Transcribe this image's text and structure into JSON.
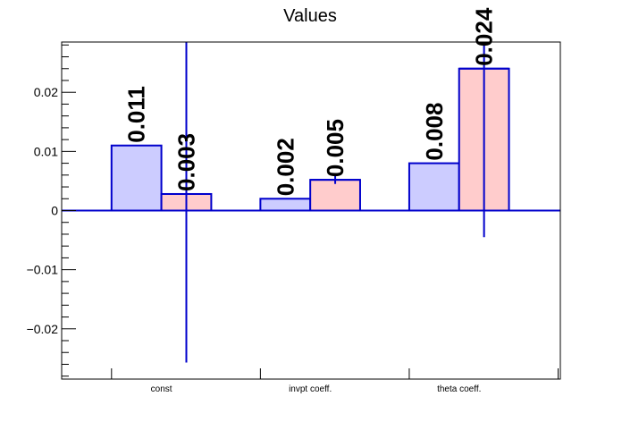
{
  "chart_data": {
    "type": "bar",
    "title": "Values",
    "xlabel": "",
    "ylabel": "",
    "categories": [
      "const",
      "invpt coeff.",
      "theta coeff."
    ],
    "series": [
      {
        "values": [
          0.011,
          0.002,
          0.008
        ],
        "labels": [
          "0.011",
          "0.002",
          "0.008"
        ],
        "errors": [
          0,
          0,
          0
        ]
      },
      {
        "values": [
          0.0028,
          0.0052,
          0.024
        ],
        "labels": [
          "0.003",
          "0.005",
          "0.024"
        ],
        "errors": [
          0.0285,
          0.0007,
          0.0285
        ]
      }
    ],
    "ylim": [
      -0.0285,
      0.0285
    ],
    "yticks": [
      -0.02,
      -0.01,
      0,
      0.01,
      0.02
    ],
    "ytick_labels": [
      "−0.02",
      "−0.01",
      "0",
      "0.01",
      "0.02"
    ],
    "grid": false,
    "legend": "none",
    "colors": {
      "series1_fill": "#ccccff",
      "series2_fill": "#ffcccc",
      "bar_stroke": "#0000cc",
      "axis": "#000000"
    }
  }
}
